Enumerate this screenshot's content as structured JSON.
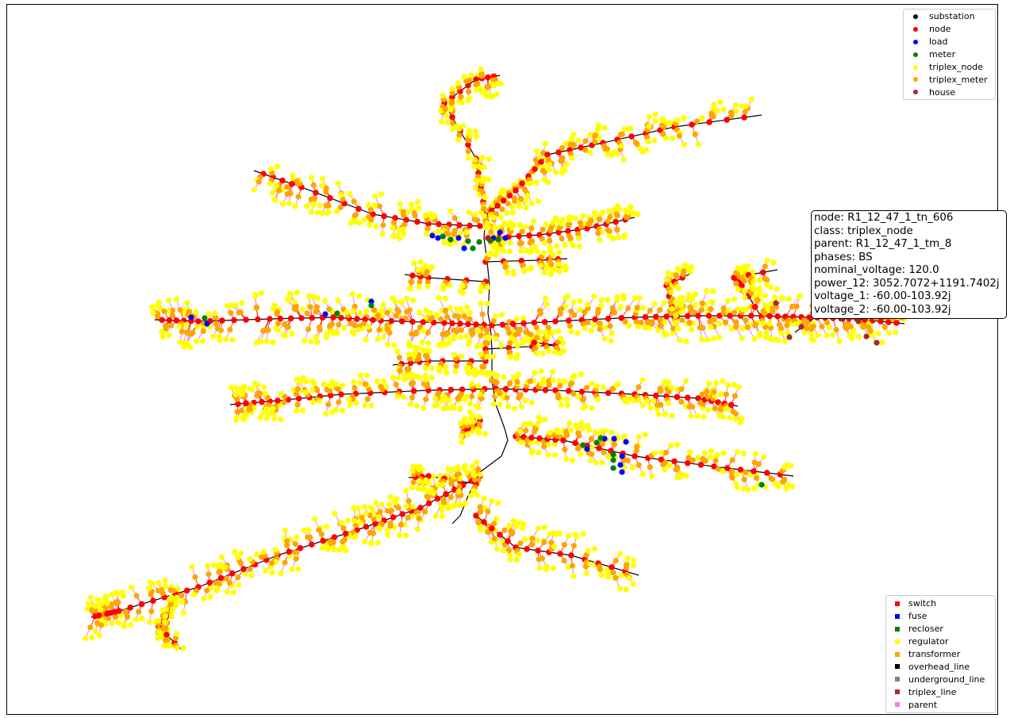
{
  "node_legend": [
    {
      "label": "substation",
      "color": "#000000"
    },
    {
      "label": "node",
      "color": "#ff0000"
    },
    {
      "label": "load",
      "color": "#0000ff"
    },
    {
      "label": "meter",
      "color": "#008000"
    },
    {
      "label": "triplex_node",
      "color": "#ffff00"
    },
    {
      "label": "triplex_meter",
      "color": "#ffa500"
    },
    {
      "label": "house",
      "color": "#a52a2a"
    }
  ],
  "link_legend": [
    {
      "label": "switch",
      "color": "#ff0000"
    },
    {
      "label": "fuse",
      "color": "#0000ff"
    },
    {
      "label": "recloser",
      "color": "#008000"
    },
    {
      "label": "regulator",
      "color": "#ffff00"
    },
    {
      "label": "transformer",
      "color": "#ffa500"
    },
    {
      "label": "overhead_line",
      "color": "#000000"
    },
    {
      "label": "underground_line",
      "color": "#808080"
    },
    {
      "label": "triplex_line",
      "color": "#a52a2a"
    },
    {
      "label": "parent",
      "color": "#ee82ee"
    }
  ],
  "tooltip": {
    "node": "node: R1_12_47_1_tn_606",
    "class": "class: triplex_node",
    "parent": "parent: R1_12_47_1_tm_8",
    "phases": "phases: BS",
    "nominal_voltage": "nominal_voltage: 120.0",
    "power_12": "power_12: 3052.7072+1191.7402j",
    "voltage_1": "voltage_1: -60.00-103.92j",
    "voltage_2": "voltage_2: -60.00-103.92j"
  }
}
